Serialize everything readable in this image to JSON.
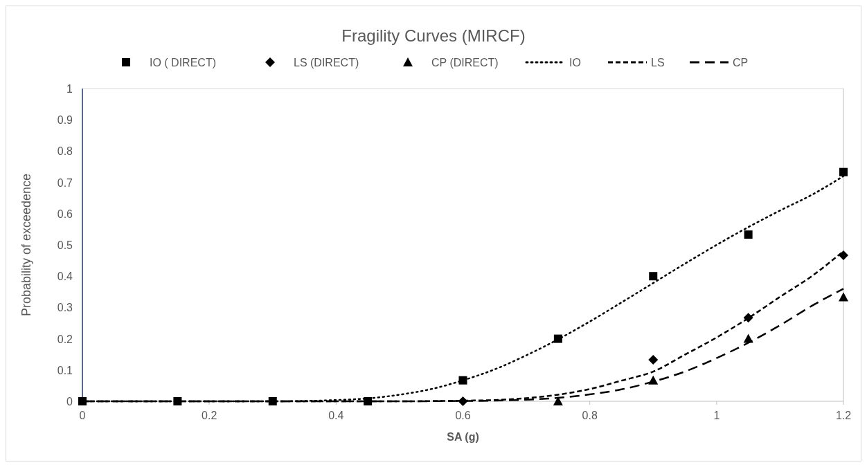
{
  "chart_data": {
    "type": "scatter",
    "title": "Fragility Curves (MIRCF)",
    "xlabel": "SA (g)",
    "ylabel": "Probability of exceedence",
    "xlim": [
      0,
      1.2
    ],
    "xticks": [
      0,
      0.2,
      0.4,
      0.6,
      0.8,
      1,
      1.2
    ],
    "ylim": [
      0,
      1
    ],
    "yticks": [
      0,
      0.1,
      0.2,
      0.3,
      0.4,
      0.5,
      0.6,
      0.7,
      0.8,
      0.9,
      1
    ],
    "grid": false,
    "legend": "top",
    "series": [
      {
        "name": "IO ( DIRECT)",
        "marker": "square",
        "color": "#000000",
        "x": [
          0,
          0.15,
          0.3,
          0.45,
          0.6,
          0.75,
          0.9,
          1.05,
          1.2
        ],
        "values": [
          0,
          0,
          0,
          0,
          0.067,
          0.2,
          0.4,
          0.533,
          0.733
        ]
      },
      {
        "name": "LS (DIRECT)",
        "marker": "diamond",
        "color": "#000000",
        "x": [
          0.6,
          0.75,
          0.9,
          1.05,
          1.2
        ],
        "values": [
          0,
          null,
          0.133,
          0.267,
          0.467
        ]
      },
      {
        "name": "CP (DIRECT)",
        "marker": "triangle",
        "color": "#000000",
        "x": [
          0.75,
          0.9,
          1.05,
          1.2
        ],
        "values": [
          0,
          0.067,
          0.2,
          0.333
        ]
      },
      {
        "name": "IO",
        "type": "line",
        "line_style": "dotted",
        "marker": "none",
        "color": "#000000",
        "x": [
          0,
          0.2,
          0.3,
          0.4,
          0.45,
          0.5,
          0.55,
          0.6,
          0.65,
          0.7,
          0.75,
          0.8,
          0.85,
          0.9,
          0.95,
          1,
          1.05,
          1.1,
          1.15,
          1.2
        ],
        "values": [
          0,
          0,
          0,
          0.004,
          0.009,
          0.021,
          0.039,
          0.067,
          0.102,
          0.147,
          0.198,
          0.255,
          0.316,
          0.378,
          0.44,
          0.5,
          0.557,
          0.61,
          0.66,
          0.72
        ]
      },
      {
        "name": "LS",
        "type": "line",
        "line_style": "dashed",
        "marker": "none",
        "color": "#000000",
        "x": [
          0,
          0.3,
          0.5,
          0.6,
          0.65,
          0.7,
          0.75,
          0.8,
          0.85,
          0.9,
          0.95,
          1,
          1.05,
          1.1,
          1.15,
          1.2
        ],
        "values": [
          0,
          0,
          0,
          0.002,
          0.004,
          0.01,
          0.021,
          0.039,
          0.066,
          0.095,
          0.149,
          0.204,
          0.266,
          0.334,
          0.4,
          0.48
        ]
      },
      {
        "name": "CP",
        "type": "line",
        "line_style": "dashed",
        "marker": "none",
        "color": "#000000",
        "x": [
          0,
          0.3,
          0.5,
          0.6,
          0.65,
          0.7,
          0.75,
          0.8,
          0.85,
          0.9,
          0.95,
          1,
          1.05,
          1.1,
          1.15,
          1.2
        ],
        "values": [
          0,
          0,
          0,
          0.001,
          0.002,
          0.005,
          0.011,
          0.022,
          0.038,
          0.063,
          0.095,
          0.138,
          0.187,
          0.243,
          0.305,
          0.36
        ]
      }
    ]
  }
}
